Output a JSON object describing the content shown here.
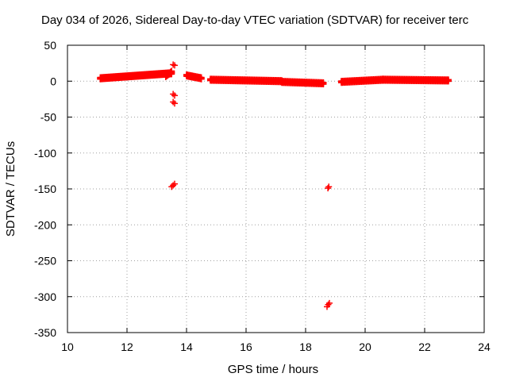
{
  "chart_data": {
    "type": "scatter",
    "title": "Day 034 of 2026, Sidereal Day-to-day VTEC variation (SDTVAR) for receiver terc",
    "xlabel": "GPS time / hours",
    "ylabel": "SDTVAR / TECUs",
    "xlim": [
      10,
      24
    ],
    "ylim": [
      -350,
      50
    ],
    "xticks": [
      10,
      12,
      14,
      16,
      18,
      20,
      22,
      24
    ],
    "yticks": [
      50,
      0,
      -50,
      -100,
      -150,
      -200,
      -250,
      -300,
      -350
    ],
    "grid": true,
    "legend": "none",
    "marker": "plus",
    "color": "#ff0000",
    "segments": [
      {
        "start": [
          11.1,
          4
        ],
        "end": [
          13.5,
          11
        ]
      },
      {
        "start": [
          13.3,
          7
        ],
        "end": [
          13.5,
          13
        ]
      },
      {
        "start": [
          14.0,
          8
        ],
        "end": [
          14.5,
          4
        ]
      },
      {
        "start": [
          14.8,
          2
        ],
        "end": [
          17.2,
          0
        ]
      },
      {
        "start": [
          17.2,
          -1
        ],
        "end": [
          18.6,
          -3
        ]
      },
      {
        "start": [
          19.2,
          -1
        ],
        "end": [
          20.6,
          2
        ]
      },
      {
        "start": [
          20.6,
          2
        ],
        "end": [
          22.8,
          1
        ]
      }
    ],
    "points": [
      [
        13.55,
        23
      ],
      [
        13.6,
        22
      ],
      [
        13.55,
        -18
      ],
      [
        13.6,
        -20
      ],
      [
        13.55,
        -29
      ],
      [
        13.6,
        -31
      ],
      [
        13.5,
        -147
      ],
      [
        13.55,
        -145
      ],
      [
        13.6,
        -143
      ],
      [
        18.75,
        -149
      ],
      [
        18.78,
        -147
      ],
      [
        18.72,
        -314
      ],
      [
        18.76,
        -311
      ],
      [
        18.8,
        -309
      ]
    ]
  }
}
